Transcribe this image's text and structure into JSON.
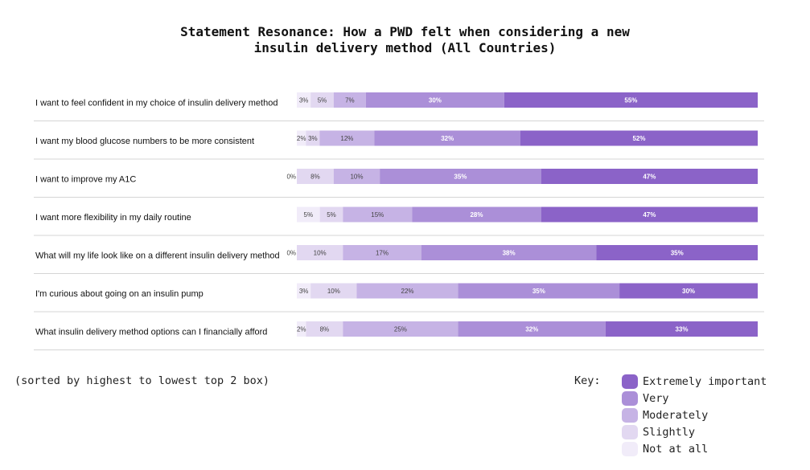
{
  "chart_data": {
    "type": "bar",
    "stacked": true,
    "orientation": "horizontal",
    "title_lines": [
      "Statement Resonance: How a PWD felt when considering a new",
      "insulin delivery method (All Countries)"
    ],
    "categories": [
      "I want to feel confident in my choice of insulin delivery method",
      "I want my blood glucose numbers to be more consistent",
      "I want to improve my A1C",
      "I want more flexibility in my daily routine",
      "What will my life look like on a different insulin delivery method",
      "I'm curious about going on an insulin pump",
      "What insulin delivery method options can I financially afford"
    ],
    "series": [
      {
        "name": "Not at all",
        "color": "#f1ecf9",
        "values": [
          3,
          2,
          0,
          5,
          0,
          3,
          2
        ]
      },
      {
        "name": "Slightly",
        "color": "#e2d8f1",
        "values": [
          5,
          3,
          8,
          5,
          10,
          10,
          8
        ]
      },
      {
        "name": "Moderately",
        "color": "#c6b3e5",
        "values": [
          7,
          12,
          10,
          15,
          17,
          22,
          25
        ]
      },
      {
        "name": "Very",
        "color": "#ab8fd8",
        "values": [
          30,
          32,
          35,
          28,
          38,
          35,
          32
        ]
      },
      {
        "name": "Extremely important",
        "color": "#8b63c8",
        "values": [
          55,
          52,
          47,
          47,
          35,
          30,
          33
        ]
      }
    ],
    "value_suffix": "%",
    "note": "(sorted by highest to lowest top 2 box)",
    "legend_title": "Key:",
    "legend_order": [
      "Extremely important",
      "Very",
      "Moderately",
      "Slightly",
      "Not at all"
    ]
  }
}
